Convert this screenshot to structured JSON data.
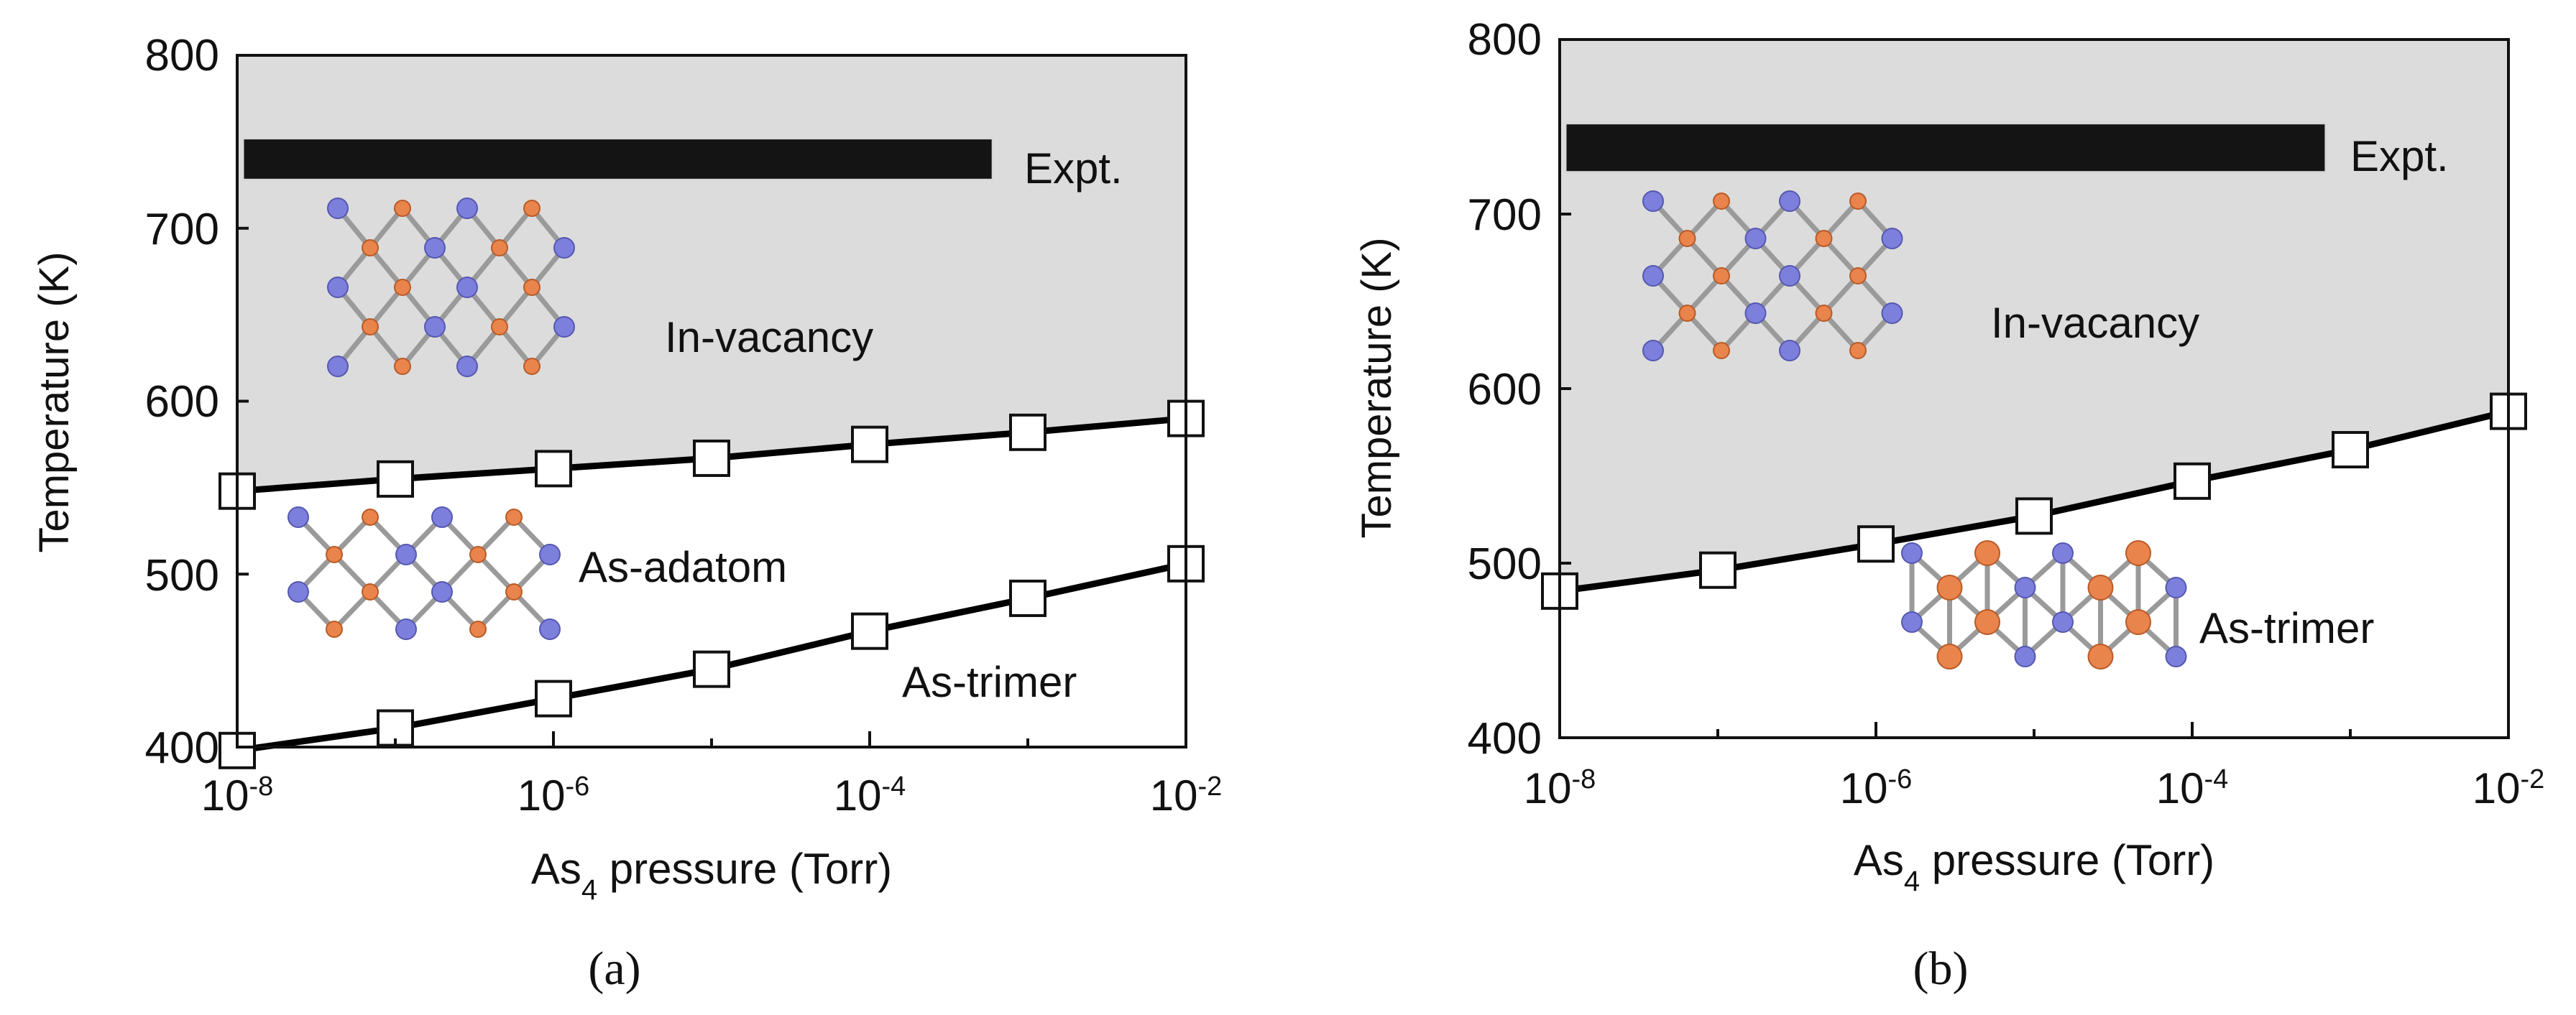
{
  "chart_data": [
    {
      "panel": "(a)",
      "type": "line",
      "x_scale": "log",
      "xlabel": "As₄ pressure (Torr)",
      "ylabel": "Temperature (K)",
      "xlim": [
        1e-08,
        0.01
      ],
      "ylim": [
        400,
        800
      ],
      "x_tick_labels": [
        "10-8",
        "10-6",
        "10-4",
        "10-2"
      ],
      "y_ticks": [
        400,
        500,
        600,
        700,
        800
      ],
      "bar_label": "Expt.",
      "expt_band": {
        "x": [
          1e-08,
          0.0006
        ],
        "y": [
          728,
          752
        ]
      },
      "regions": [
        "In-vacancy",
        "As-adatom",
        "As-trimer"
      ],
      "series": [
        {
          "x": [
            1e-08,
            1e-07,
            1e-06,
            1e-05,
            0.0001,
            0.001,
            0.01
          ],
          "y": [
            548,
            555,
            561,
            567,
            575,
            582,
            590
          ]
        },
        {
          "x": [
            1e-08,
            1e-07,
            1e-06,
            1e-05,
            0.0001,
            0.001,
            0.01
          ],
          "y": [
            398,
            411,
            428,
            445,
            467,
            486,
            506
          ]
        }
      ]
    },
    {
      "panel": "(b)",
      "type": "line",
      "x_scale": "log",
      "xlabel": "As₄ pressure (Torr)",
      "ylabel": "Temperature (K)",
      "xlim": [
        1e-08,
        0.01
      ],
      "ylim": [
        400,
        800
      ],
      "x_tick_labels": [
        "10-8",
        "10-6",
        "10-4",
        "10-2"
      ],
      "y_ticks": [
        400,
        500,
        600,
        700,
        800
      ],
      "bar_label": "Expt.",
      "expt_band": {
        "x": [
          1e-08,
          0.0007
        ],
        "y": [
          724,
          752
        ]
      },
      "regions": [
        "In-vacancy",
        "As-trimer"
      ],
      "series": [
        {
          "x": [
            1e-08,
            1e-07,
            1e-06,
            1e-05,
            0.0001,
            0.001,
            0.01
          ],
          "y": [
            484,
            496,
            511,
            527,
            547,
            565,
            587
          ]
        }
      ]
    }
  ]
}
